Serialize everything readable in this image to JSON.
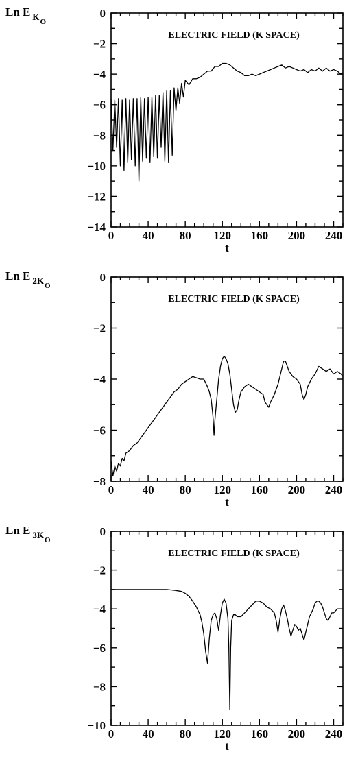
{
  "chart_data": [
    {
      "type": "line",
      "title": "ELECTRIC FIELD (K SPACE)",
      "ylabel": {
        "main": "Ln E",
        "sub": "K",
        "subsub": "O"
      },
      "xlabel": "t",
      "xlim": [
        0,
        250
      ],
      "ylim": [
        -14,
        0
      ],
      "xticks": [
        0,
        40,
        80,
        120,
        160,
        200,
        240
      ],
      "yticks": [
        0,
        -2,
        -4,
        -6,
        -8,
        -10,
        -12,
        -14
      ],
      "series": [
        {
          "x": [
            0,
            2,
            4,
            6,
            8,
            10,
            12,
            14,
            16,
            18,
            20,
            22,
            24,
            26,
            28,
            30,
            32,
            34,
            36,
            38,
            40,
            42,
            44,
            46,
            48,
            50,
            52,
            54,
            56,
            58,
            60,
            62,
            64,
            66,
            68,
            70,
            72,
            74,
            76,
            78,
            80,
            84,
            88,
            92,
            96,
            100,
            104,
            108,
            112,
            116,
            120,
            124,
            128,
            132,
            136,
            140,
            144,
            148,
            152,
            156,
            160,
            164,
            168,
            172,
            176,
            180,
            184,
            188,
            192,
            196,
            200,
            204,
            208,
            212,
            216,
            220,
            224,
            228,
            232,
            236,
            240,
            244,
            248,
            250
          ],
          "y": [
            -5.6,
            -9.0,
            -5.7,
            -8.8,
            -5.6,
            -10.0,
            -5.7,
            -10.3,
            -5.6,
            -9.8,
            -5.7,
            -9.6,
            -5.6,
            -10.0,
            -5.6,
            -11.0,
            -5.5,
            -9.7,
            -5.6,
            -9.5,
            -5.5,
            -9.8,
            -5.5,
            -9.4,
            -5.4,
            -9.5,
            -5.4,
            -8.8,
            -5.2,
            -9.7,
            -5.1,
            -9.8,
            -5.1,
            -9.3,
            -4.9,
            -6.4,
            -4.9,
            -5.9,
            -4.6,
            -5.5,
            -4.4,
            -4.7,
            -4.3,
            -4.3,
            -4.2,
            -4.0,
            -3.8,
            -3.8,
            -3.5,
            -3.5,
            -3.3,
            -3.3,
            -3.4,
            -3.6,
            -3.8,
            -3.9,
            -4.1,
            -4.1,
            -4.0,
            -4.1,
            -4.0,
            -3.9,
            -3.8,
            -3.7,
            -3.6,
            -3.5,
            -3.4,
            -3.6,
            -3.5,
            -3.6,
            -3.7,
            -3.8,
            -3.7,
            -3.9,
            -3.7,
            -3.8,
            -3.6,
            -3.8,
            -3.6,
            -3.8,
            -3.7,
            -3.8,
            -4.0,
            -3.9
          ]
        }
      ]
    },
    {
      "type": "line",
      "title": "ELECTRIC FIELD (K SPACE)",
      "ylabel": {
        "main": "Ln E",
        "sub": "2K",
        "subsub": "O"
      },
      "xlabel": "t",
      "xlim": [
        0,
        250
      ],
      "ylim": [
        -8,
        0
      ],
      "xticks": [
        0,
        40,
        80,
        120,
        160,
        200,
        240
      ],
      "yticks": [
        0,
        -2,
        -4,
        -6,
        -8
      ],
      "series": [
        {
          "x": [
            0,
            2,
            4,
            6,
            8,
            10,
            12,
            14,
            16,
            20,
            24,
            28,
            32,
            36,
            40,
            44,
            48,
            52,
            56,
            60,
            64,
            68,
            72,
            76,
            80,
            84,
            88,
            92,
            96,
            100,
            104,
            106,
            108,
            110,
            111,
            112,
            114,
            116,
            118,
            120,
            122,
            124,
            126,
            128,
            130,
            132,
            134,
            136,
            138,
            140,
            144,
            148,
            152,
            156,
            160,
            164,
            166,
            168,
            170,
            172,
            176,
            180,
            184,
            186,
            188,
            190,
            192,
            196,
            200,
            204,
            206,
            208,
            210,
            212,
            216,
            220,
            224,
            228,
            232,
            236,
            240,
            244,
            248,
            250
          ],
          "y": [
            -7.2,
            -7.8,
            -7.4,
            -7.6,
            -7.3,
            -7.4,
            -7.1,
            -7.2,
            -6.9,
            -6.8,
            -6.6,
            -6.5,
            -6.3,
            -6.1,
            -5.9,
            -5.7,
            -5.5,
            -5.3,
            -5.1,
            -4.9,
            -4.7,
            -4.5,
            -4.4,
            -4.2,
            -4.1,
            -4.0,
            -3.9,
            -3.95,
            -4.0,
            -4.0,
            -4.3,
            -4.5,
            -4.8,
            -5.5,
            -6.2,
            -5.6,
            -4.8,
            -4.0,
            -3.5,
            -3.2,
            -3.1,
            -3.2,
            -3.4,
            -3.8,
            -4.4,
            -5.0,
            -5.3,
            -5.2,
            -4.8,
            -4.5,
            -4.3,
            -4.2,
            -4.3,
            -4.4,
            -4.5,
            -4.6,
            -4.9,
            -5.0,
            -5.1,
            -4.9,
            -4.6,
            -4.2,
            -3.6,
            -3.3,
            -3.3,
            -3.5,
            -3.7,
            -3.9,
            -4.0,
            -4.2,
            -4.6,
            -4.8,
            -4.6,
            -4.3,
            -4.0,
            -3.8,
            -3.5,
            -3.6,
            -3.7,
            -3.6,
            -3.8,
            -3.7,
            -3.8,
            -3.9
          ]
        }
      ]
    },
    {
      "type": "line",
      "title": "ELECTRIC FIELD (K SPACE)",
      "ylabel": {
        "main": "Ln E",
        "sub": "3K",
        "subsub": "O"
      },
      "xlabel": "t",
      "xlim": [
        0,
        250
      ],
      "ylim": [
        -10,
        0
      ],
      "xticks": [
        0,
        40,
        80,
        120,
        160,
        200,
        240
      ],
      "yticks": [
        0,
        -2,
        -4,
        -6,
        -8,
        -10
      ],
      "series": [
        {
          "x": [
            0,
            10,
            20,
            30,
            40,
            50,
            60,
            70,
            76,
            80,
            84,
            88,
            92,
            96,
            98,
            100,
            102,
            104,
            106,
            108,
            110,
            112,
            114,
            116,
            118,
            120,
            122,
            124,
            126,
            127,
            128,
            129,
            130,
            132,
            134,
            136,
            140,
            144,
            148,
            152,
            156,
            160,
            164,
            168,
            172,
            176,
            178,
            180,
            182,
            184,
            186,
            188,
            190,
            192,
            194,
            196,
            198,
            200,
            202,
            204,
            206,
            208,
            210,
            212,
            214,
            218,
            220,
            222,
            224,
            226,
            228,
            230,
            232,
            234,
            236,
            238,
            240,
            244,
            248,
            250
          ],
          "y": [
            -3.0,
            -3.0,
            -3.0,
            -3.0,
            -3.0,
            -3.0,
            -3.0,
            -3.05,
            -3.1,
            -3.2,
            -3.35,
            -3.6,
            -3.9,
            -4.3,
            -4.7,
            -5.3,
            -6.2,
            -6.8,
            -5.5,
            -4.6,
            -4.3,
            -4.2,
            -4.5,
            -5.1,
            -4.3,
            -3.7,
            -3.5,
            -3.7,
            -4.5,
            -6.0,
            -9.2,
            -6.0,
            -4.6,
            -4.3,
            -4.3,
            -4.4,
            -4.4,
            -4.2,
            -4.0,
            -3.8,
            -3.6,
            -3.6,
            -3.7,
            -3.9,
            -4.0,
            -4.2,
            -4.6,
            -5.2,
            -4.5,
            -4.0,
            -3.8,
            -4.1,
            -4.5,
            -5.0,
            -5.4,
            -5.1,
            -4.8,
            -4.9,
            -5.1,
            -5.0,
            -5.3,
            -5.6,
            -5.2,
            -4.8,
            -4.4,
            -4.0,
            -3.7,
            -3.6,
            -3.6,
            -3.7,
            -3.9,
            -4.2,
            -4.5,
            -4.6,
            -4.4,
            -4.2,
            -4.2,
            -4.0,
            -4.0,
            -4.0
          ]
        }
      ]
    }
  ]
}
